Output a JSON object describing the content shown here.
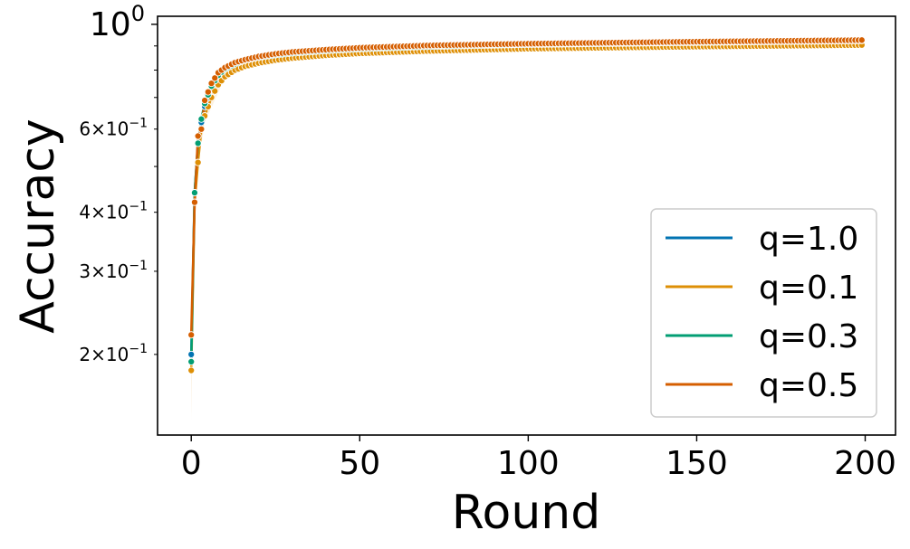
{
  "chart_data": {
    "type": "line",
    "xlabel": "Round",
    "ylabel": "Accuracy",
    "xlim": [
      -10,
      209
    ],
    "ylim": [
      0.135,
      1.04
    ],
    "yscale": "log",
    "grid": false,
    "legend_position": "lower-right",
    "x_ticks": [
      {
        "value": 0,
        "label": "0"
      },
      {
        "value": 50,
        "label": "50"
      },
      {
        "value": 100,
        "label": "100"
      },
      {
        "value": 150,
        "label": "150"
      },
      {
        "value": 200,
        "label": "200"
      }
    ],
    "y_ticks": [
      {
        "value": 1.0,
        "base": "10",
        "exp": "0",
        "major": true
      },
      {
        "value": 0.6,
        "mant": "6",
        "base": "10",
        "exp": "−1",
        "major": false
      },
      {
        "value": 0.4,
        "mant": "4",
        "base": "10",
        "exp": "−1",
        "major": false
      },
      {
        "value": 0.3,
        "mant": "3",
        "base": "10",
        "exp": "−1",
        "major": false
      },
      {
        "value": 0.2,
        "mant": "2",
        "base": "10",
        "exp": "−1",
        "major": false
      }
    ],
    "y_minor_unlabeled": [
      0.5,
      0.7,
      0.8,
      0.9
    ],
    "series": [
      {
        "name": "q=1.0",
        "color": "#0173b2",
        "x": [
          0,
          1,
          2,
          3,
          4,
          6,
          8,
          10,
          13,
          16,
          20,
          25,
          30,
          40,
          50,
          70,
          100,
          150,
          199
        ],
        "y": [
          0.2,
          0.44,
          0.56,
          0.62,
          0.67,
          0.73,
          0.775,
          0.8,
          0.82,
          0.835,
          0.85,
          0.86,
          0.868,
          0.878,
          0.886,
          0.896,
          0.905,
          0.914,
          0.922
        ]
      },
      {
        "name": "q=0.1",
        "color": "#de8f05",
        "x": [
          0,
          1,
          2,
          3,
          4,
          6,
          8,
          10,
          13,
          16,
          20,
          25,
          30,
          40,
          50,
          70,
          100,
          150,
          199
        ],
        "y": [
          0.185,
          0.42,
          0.51,
          0.6,
          0.64,
          0.7,
          0.745,
          0.775,
          0.8,
          0.815,
          0.828,
          0.84,
          0.848,
          0.86,
          0.868,
          0.878,
          0.888,
          0.897,
          0.904
        ]
      },
      {
        "name": "q=0.3",
        "color": "#029e73",
        "x": [
          0,
          1,
          2,
          3,
          4,
          6,
          8,
          10,
          13,
          16,
          20,
          25,
          30,
          40,
          50,
          70,
          100,
          150,
          199
        ],
        "y": [
          0.193,
          0.44,
          0.56,
          0.63,
          0.68,
          0.74,
          0.78,
          0.805,
          0.825,
          0.84,
          0.852,
          0.862,
          0.87,
          0.88,
          0.888,
          0.898,
          0.907,
          0.916,
          0.924
        ]
      },
      {
        "name": "q=0.5",
        "color": "#d55e00",
        "x": [
          0,
          1,
          2,
          3,
          4,
          6,
          8,
          10,
          13,
          16,
          20,
          25,
          30,
          40,
          50,
          70,
          100,
          150,
          199
        ],
        "y": [
          0.22,
          0.42,
          0.58,
          0.6,
          0.69,
          0.75,
          0.79,
          0.81,
          0.83,
          0.842,
          0.855,
          0.866,
          0.874,
          0.884,
          0.892,
          0.902,
          0.91,
          0.919,
          0.926
        ]
      }
    ]
  }
}
